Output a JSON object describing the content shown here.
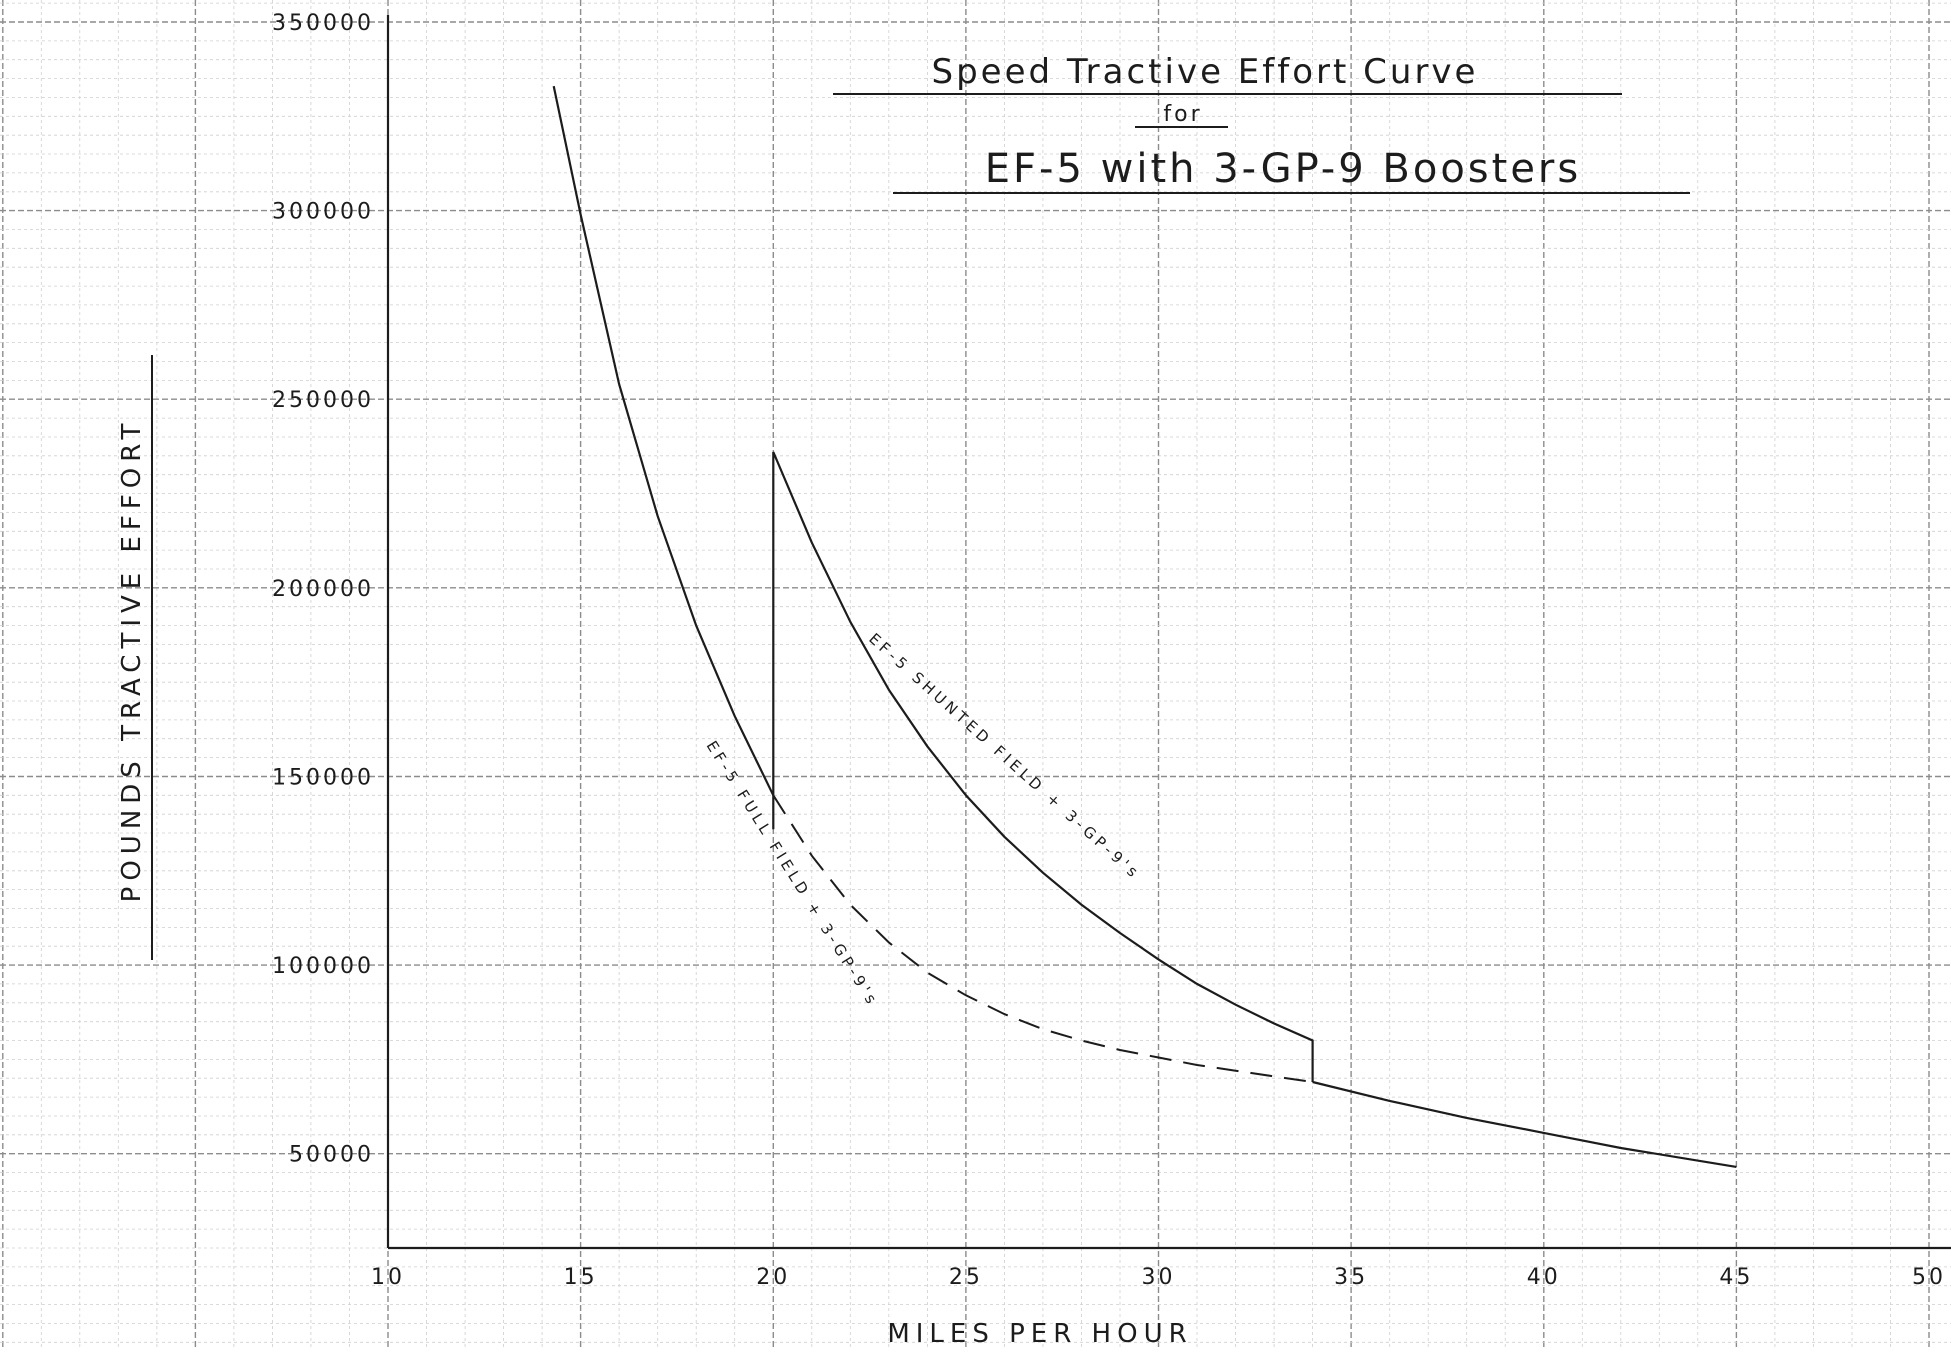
{
  "chart_data": {
    "type": "line",
    "title": "Speed Tractive Effort Curve",
    "title_for": "for",
    "subtitle": "EF-5 with 3-GP-9 Boosters",
    "xlabel": "MILES PER HOUR",
    "ylabel": "POUNDS TRACTIVE EFFORT",
    "xlim": [
      10,
      50
    ],
    "ylim": [
      25000,
      350000
    ],
    "x_ticks": [
      "10",
      "15",
      "20",
      "25",
      "30",
      "35",
      "40",
      "45",
      "50"
    ],
    "y_ticks": [
      "350000",
      "300000",
      "250000",
      "200000",
      "150000",
      "100000",
      "50000"
    ],
    "grid": true,
    "series": [
      {
        "name": "EF-5 FULL FIELD + 3-GP-9's",
        "style": "solid-then-dashed",
        "x": [
          14.3,
          15,
          16,
          17,
          18,
          19,
          20,
          21,
          22,
          23,
          24,
          25,
          26,
          27,
          28,
          29,
          30,
          31,
          32,
          33,
          34
        ],
        "y": [
          333000,
          299000,
          254000,
          219000,
          190000,
          166000,
          145000,
          129000,
          116000,
          106000,
          98000,
          92000,
          87000,
          83000,
          80000,
          77500,
          75500,
          73500,
          72000,
          70500,
          69000
        ]
      },
      {
        "name": "EF-5 SHUNTED FIELD + 3-GP-9's",
        "style": "solid",
        "x": [
          20,
          20,
          21,
          22,
          23,
          24,
          25,
          26,
          27,
          28,
          29,
          30,
          31,
          32,
          33,
          34,
          34
        ],
        "y": [
          136000,
          236000,
          212000,
          191000,
          173000,
          158000,
          145000,
          134000,
          124500,
          116000,
          108500,
          101500,
          95000,
          89500,
          84500,
          80000,
          69000
        ]
      },
      {
        "name": "",
        "style": "solid",
        "x": [
          34,
          36,
          38,
          40,
          42,
          45
        ],
        "y": [
          69000,
          64000,
          59500,
          55500,
          51500,
          46500
        ]
      }
    ],
    "annotations": [
      "EF-5 FULL FIELD + 3-GP-9's",
      "EF-5 SHUNTED FIELD + 3-GP-9's"
    ]
  },
  "colors": {
    "ink": "#1c1c1c",
    "grid_minor": "#cfcfcf",
    "grid_major": "#8c8c8c",
    "paper": "#ffffff"
  }
}
